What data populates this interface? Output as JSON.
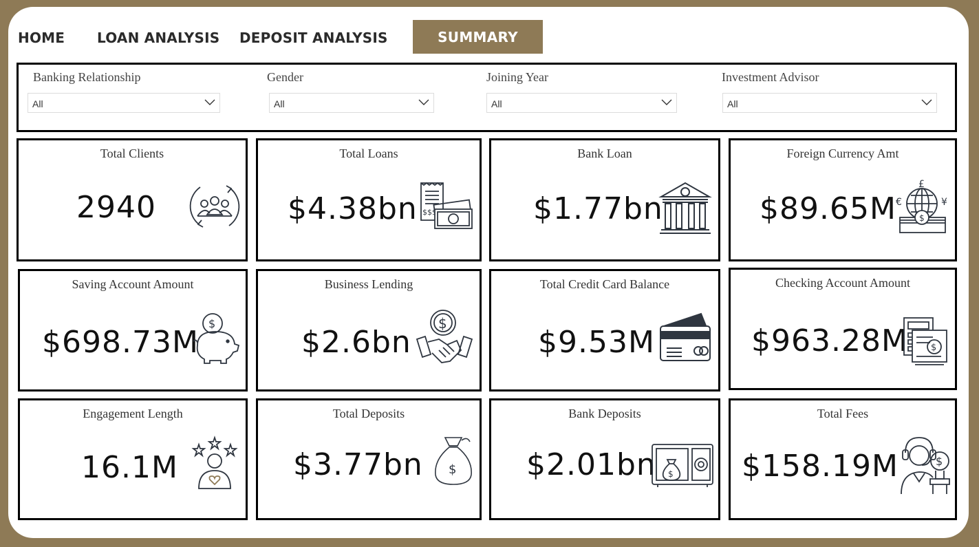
{
  "nav": {
    "home": "HOME",
    "loan_analysis": "LOAN ANALYSIS",
    "deposit_analysis": "DEPOSIT ANALYSIS",
    "summary": "SUMMARY"
  },
  "filters": {
    "banking_relationship": {
      "label": "Banking Relationship",
      "value": "All"
    },
    "gender": {
      "label": "Gender",
      "value": "All"
    },
    "joining_year": {
      "label": "Joining Year",
      "value": "All"
    },
    "investment_advisor": {
      "label": "Investment Advisor",
      "value": "All"
    }
  },
  "cards": {
    "total_clients": {
      "title": "Total Clients",
      "value": "2940",
      "icon": "clients-cycle-icon"
    },
    "total_loans": {
      "title": "Total Loans",
      "value": "$4.38bn",
      "icon": "loan-receipt-cash-icon"
    },
    "bank_loan": {
      "title": "Bank Loan",
      "value": "$1.77bn",
      "icon": "bank-building-icon"
    },
    "foreign_currency": {
      "title": "Foreign Currency Amt",
      "value": "$89.65M",
      "icon": "currency-globe-icon"
    },
    "saving_account": {
      "title": "Saving Account Amount",
      "value": "$698.73M",
      "icon": "piggy-bank-icon"
    },
    "business_lending": {
      "title": "Business Lending",
      "value": "$2.6bn",
      "icon": "handshake-coin-icon"
    },
    "credit_card_balance": {
      "title": "Total Credit Card Balance",
      "value": "$9.53M",
      "icon": "credit-card-icon"
    },
    "checking_account": {
      "title": "Checking Account Amount",
      "value": "$963.28M",
      "icon": "calculator-check-icon"
    },
    "engagement_length": {
      "title": "Engagement Length",
      "value": "16.1M",
      "icon": "rating-user-icon"
    },
    "total_deposits": {
      "title": "Total Deposits",
      "value": "$3.77bn",
      "icon": "money-bag-icon"
    },
    "bank_deposits": {
      "title": "Bank Deposits",
      "value": "$2.01bn",
      "icon": "safe-icon"
    },
    "total_fees": {
      "title": "Total Fees",
      "value": "$158.19M",
      "icon": "advisor-coin-icon"
    }
  },
  "colors": {
    "accent": "#8e7a56",
    "border": "#000000",
    "icon": "#2f3640"
  }
}
